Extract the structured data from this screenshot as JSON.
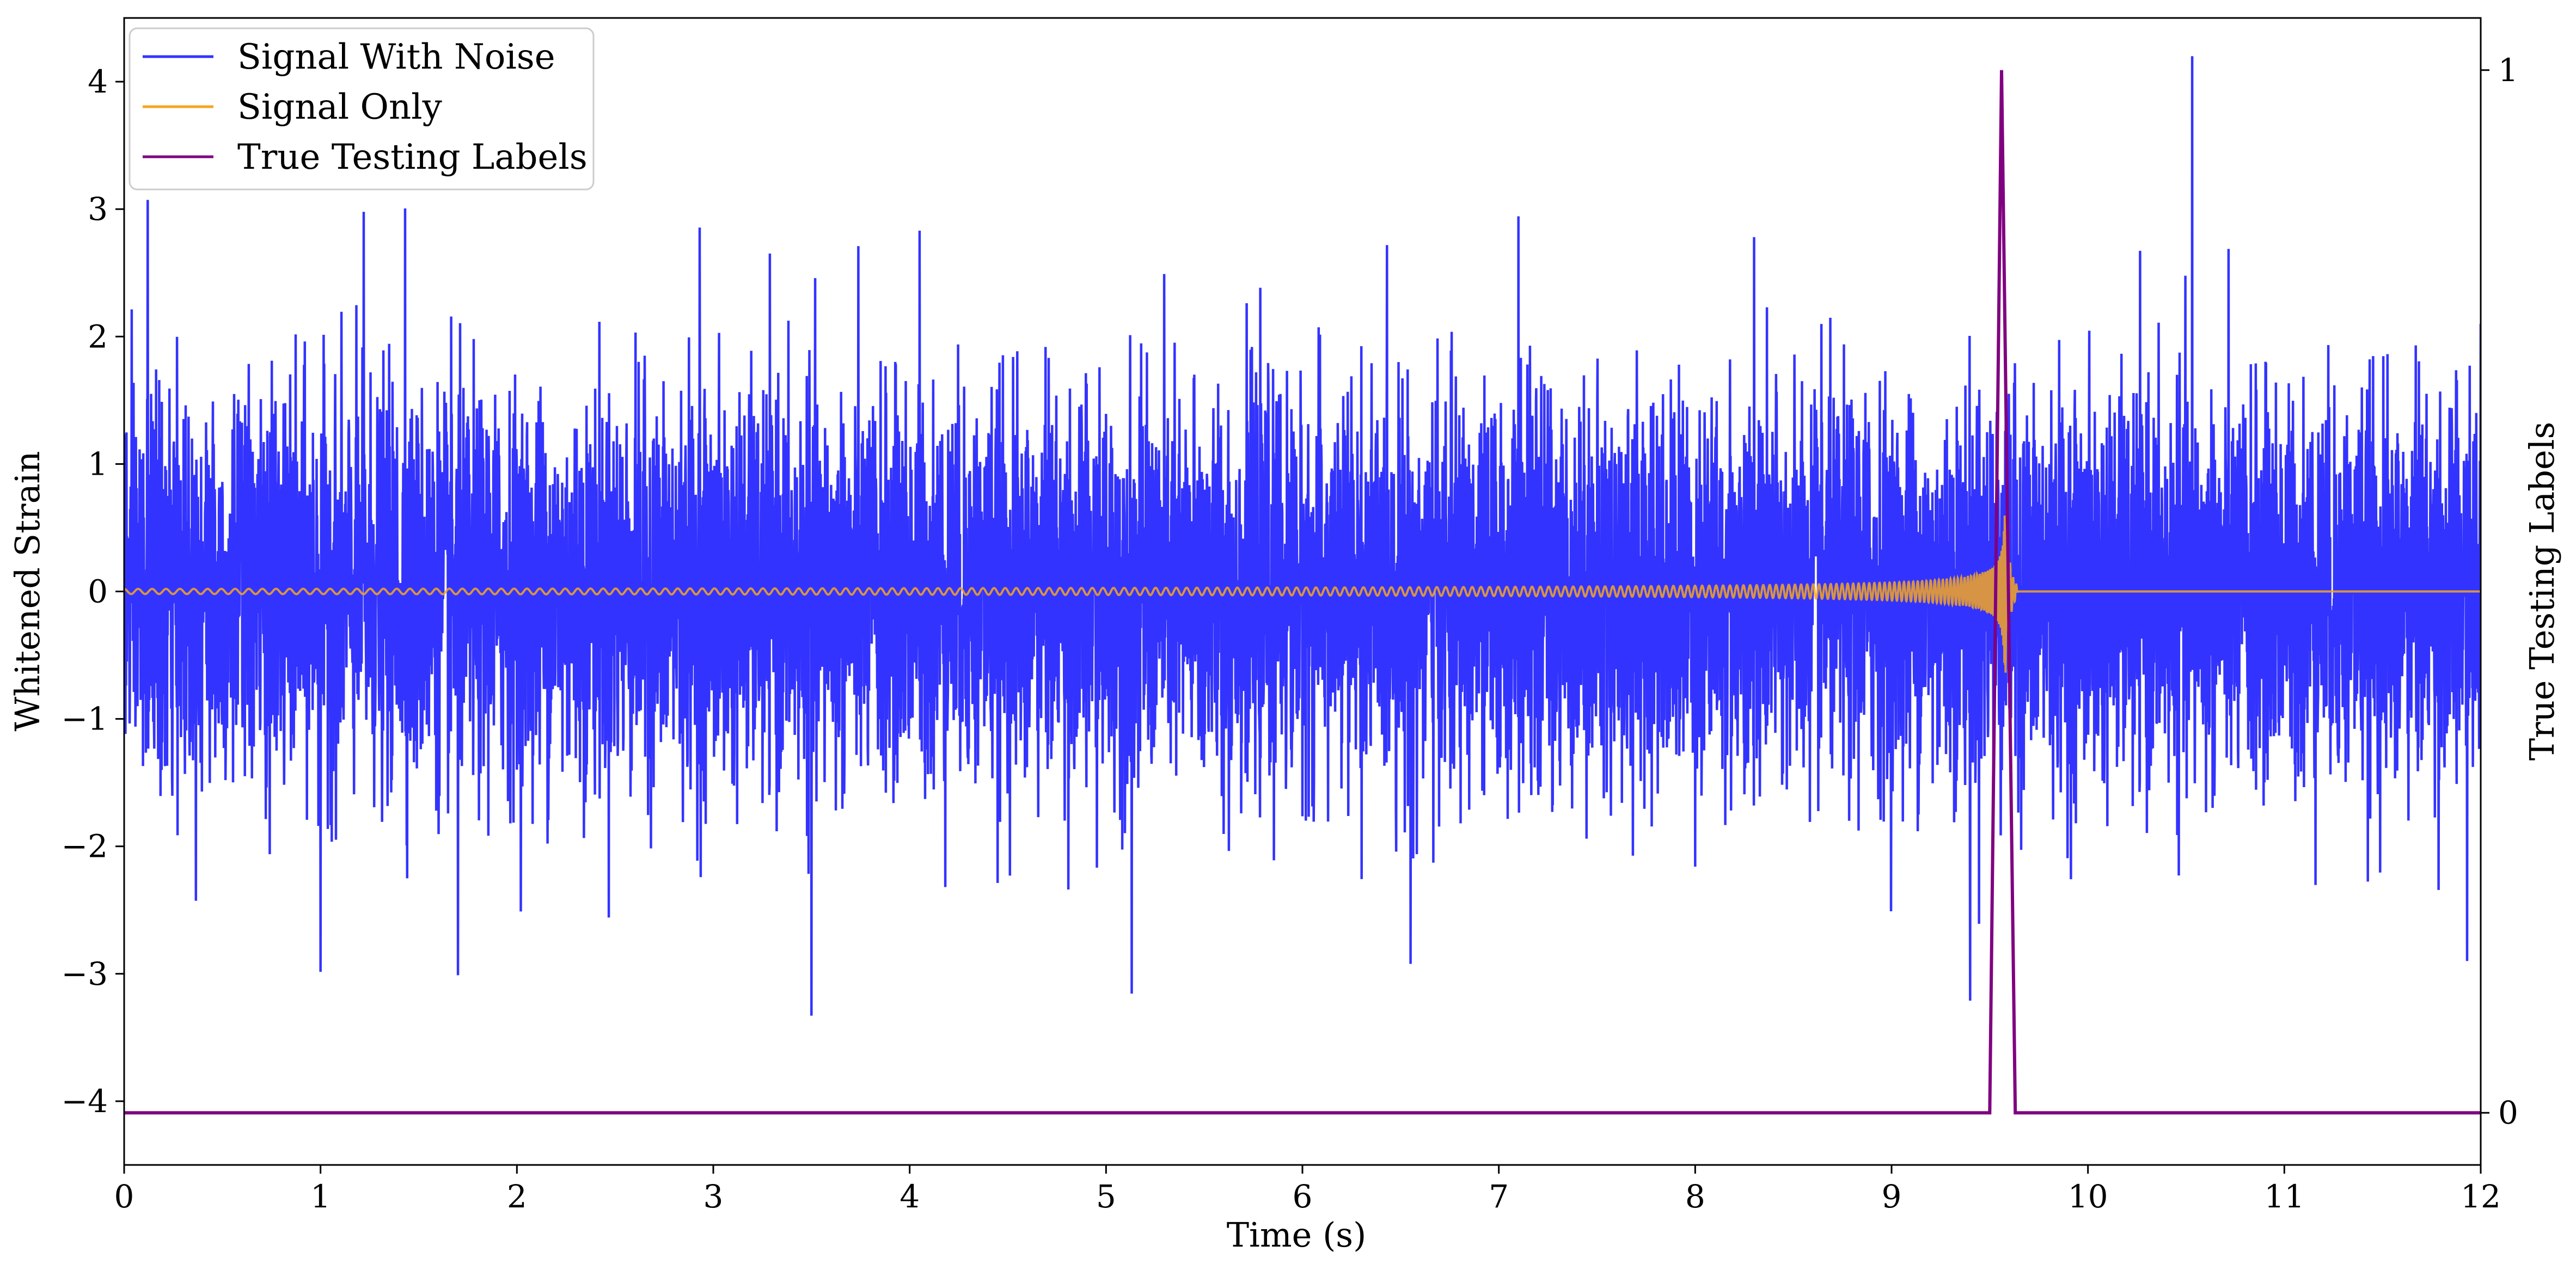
{
  "chart_data": {
    "type": "line",
    "xlabel": "Time (s)",
    "ylabel": "Whitened Strain",
    "y2label": "True Testing Labels",
    "xlim": [
      0,
      12
    ],
    "ylim": [
      -4.5,
      4.5
    ],
    "y2lim": [
      -0.05,
      1.05
    ],
    "xticks": [
      "0",
      "1",
      "2",
      "3",
      "4",
      "5",
      "6",
      "7",
      "8",
      "9",
      "10",
      "11",
      "12"
    ],
    "yticks": [
      "4",
      "3",
      "2",
      "1",
      "0",
      "−1",
      "−2",
      "−3",
      "−4"
    ],
    "y2ticks": [
      "1",
      "0"
    ],
    "legend_position": "top-left",
    "grid": false,
    "series": [
      {
        "name": "Signal With Noise",
        "color": "#3333ff",
        "axis": "left",
        "description_values": {
          "noise_std": 0.75,
          "min": -3.35,
          "max": 4.2
        },
        "peaks": [
          {
            "x": 0.12,
            "y": 3.08
          },
          {
            "x": 1.22,
            "y": 3.0
          },
          {
            "x": 1.43,
            "y": 3.02
          },
          {
            "x": 2.93,
            "y": 2.85
          },
          {
            "x": 4.05,
            "y": 2.85
          },
          {
            "x": 6.55,
            "y": 2.85
          },
          {
            "x": 7.1,
            "y": 2.97
          },
          {
            "x": 8.3,
            "y": 2.82
          },
          {
            "x": 10.53,
            "y": 4.2
          },
          {
            "x": 12.0,
            "y": 2.1
          }
        ],
        "troughs": [
          {
            "x": 1.0,
            "y": -2.98
          },
          {
            "x": 1.7,
            "y": -3.0
          },
          {
            "x": 3.5,
            "y": -3.35
          },
          {
            "x": 5.13,
            "y": -3.15
          },
          {
            "x": 6.55,
            "y": -2.95
          },
          {
            "x": 9.4,
            "y": -3.17
          },
          {
            "x": 11.93,
            "y": -2.9
          }
        ]
      },
      {
        "name": "Signal Only",
        "color": "#f5a623",
        "axis": "left",
        "merger_time": 9.58,
        "amplitude_at_merger": 0.65,
        "amplitude_at_start": 0.02
      },
      {
        "name": "True Testing Labels",
        "color": "#800080",
        "axis": "right",
        "x": [
          0,
          9.5,
          9.56,
          9.63,
          12
        ],
        "values": [
          0,
          0,
          1,
          0,
          0
        ]
      }
    ]
  }
}
